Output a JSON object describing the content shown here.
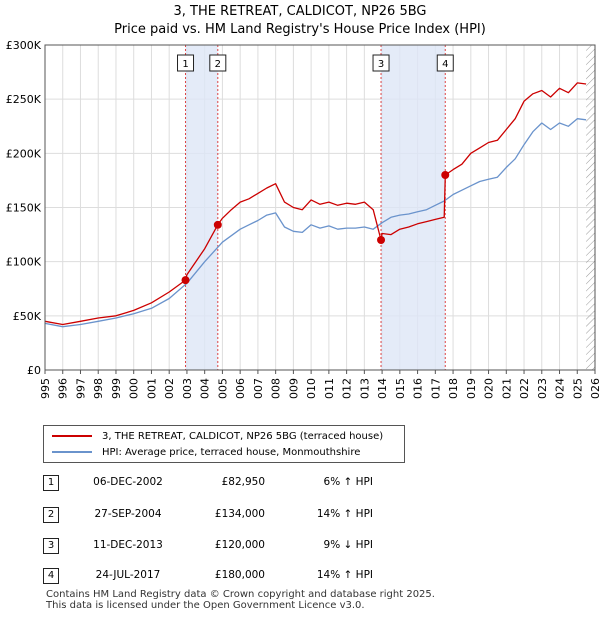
{
  "chart_data": {
    "type": "line",
    "title": "3, THE RETREAT, CALDICOT, NP26 5BG",
    "subtitle": "Price paid vs. HM Land Registry's House Price Index (HPI)",
    "xlim": [
      1995,
      2026
    ],
    "ylim": [
      0,
      300000
    ],
    "x_ticks": [
      "1995",
      "1996",
      "1997",
      "1998",
      "1999",
      "2000",
      "2001",
      "2002",
      "2003",
      "2004",
      "2005",
      "2006",
      "2007",
      "2008",
      "2009",
      "2010",
      "2011",
      "2012",
      "2013",
      "2014",
      "2015",
      "2016",
      "2017",
      "2018",
      "2019",
      "2020",
      "2021",
      "2022",
      "2023",
      "2024",
      "2025",
      "2026"
    ],
    "y_ticks": [
      {
        "value": 0,
        "label": "£0"
      },
      {
        "value": 50000,
        "label": "£50K"
      },
      {
        "value": 100000,
        "label": "£100K"
      },
      {
        "value": 150000,
        "label": "£150K"
      },
      {
        "value": 200000,
        "label": "£200K"
      },
      {
        "value": 250000,
        "label": "£250K"
      },
      {
        "value": 300000,
        "label": "£300K"
      }
    ],
    "grid": true,
    "future_hatch_from": 2025.5,
    "shaded_periods": [
      [
        2002.92,
        2004.74
      ],
      [
        2013.94,
        2017.56
      ]
    ],
    "series": [
      {
        "name": "3, THE RETREAT, CALDICOT, NP26 5BG (terraced house)",
        "color": "#cc0000",
        "x": [
          1995,
          1996,
          1997,
          1998,
          1999,
          2000,
          2001,
          2002,
          2002.92,
          2003,
          2003.5,
          2004,
          2004.74,
          2005,
          2005.5,
          2006,
          2006.5,
          2007,
          2007.5,
          2008,
          2008.5,
          2009,
          2009.5,
          2010,
          2010.5,
          2011,
          2011.5,
          2012,
          2012.5,
          2013,
          2013.5,
          2013.94,
          2014,
          2014.5,
          2015,
          2015.5,
          2016,
          2016.5,
          2017,
          2017.5,
          2017.56,
          2018,
          2018.5,
          2019,
          2019.5,
          2020,
          2020.5,
          2021,
          2021.5,
          2022,
          2022.5,
          2023,
          2023.5,
          2024,
          2024.5,
          2025,
          2025.5
        ],
        "y": [
          45000,
          42000,
          45000,
          48000,
          50000,
          55000,
          62000,
          72000,
          82950,
          88000,
          100000,
          112000,
          134000,
          140000,
          148000,
          155000,
          158000,
          163000,
          168000,
          172000,
          155000,
          150000,
          148000,
          157000,
          153000,
          155000,
          152000,
          154000,
          153000,
          155000,
          148000,
          120000,
          126000,
          125000,
          130000,
          132000,
          135000,
          137000,
          139000,
          141000,
          180000,
          185000,
          190000,
          200000,
          205000,
          210000,
          212000,
          222000,
          232000,
          248000,
          255000,
          258000,
          252000,
          260000,
          256000,
          265000,
          264000
        ]
      },
      {
        "name": "HPI: Average price, terraced house, Monmouthshire",
        "color": "#6a93cc",
        "x": [
          1995,
          1996,
          1997,
          1998,
          1999,
          2000,
          2001,
          2002,
          2003,
          2004,
          2005,
          2006,
          2006.5,
          2007,
          2007.5,
          2008,
          2008.5,
          2009,
          2009.5,
          2010,
          2010.5,
          2011,
          2011.5,
          2012,
          2012.5,
          2013,
          2013.5,
          2014,
          2014.5,
          2015,
          2015.5,
          2016,
          2016.5,
          2017,
          2017.5,
          2018,
          2018.5,
          2019,
          2019.5,
          2020,
          2020.5,
          2021,
          2021.5,
          2022,
          2022.5,
          2023,
          2023.5,
          2024,
          2024.5,
          2025,
          2025.5
        ],
        "y": [
          43000,
          40000,
          42000,
          45000,
          48000,
          52000,
          57000,
          66000,
          80000,
          100000,
          118000,
          130000,
          134000,
          138000,
          143000,
          145000,
          132000,
          128000,
          127000,
          134000,
          131000,
          133000,
          130000,
          131000,
          131000,
          132000,
          130000,
          136000,
          141000,
          143000,
          144000,
          146000,
          148000,
          152000,
          156000,
          162000,
          166000,
          170000,
          174000,
          176000,
          178000,
          187000,
          195000,
          208000,
          220000,
          228000,
          222000,
          228000,
          225000,
          232000,
          231000
        ]
      }
    ],
    "sales": [
      {
        "label": "1",
        "x": 2002.92,
        "y": 82950
      },
      {
        "label": "2",
        "x": 2004.74,
        "y": 134000
      },
      {
        "label": "3",
        "x": 2013.94,
        "y": 120000
      },
      {
        "label": "4",
        "x": 2017.56,
        "y": 180000
      }
    ]
  },
  "legend": {
    "red_label": "3, THE RETREAT, CALDICOT, NP26 5BG (terraced house)",
    "blue_label": "HPI: Average price, terraced house, Monmouthshire"
  },
  "transactions": [
    {
      "num": "1",
      "date": "06-DEC-2002",
      "price": "£82,950",
      "hpi": "6% ↑ HPI"
    },
    {
      "num": "2",
      "date": "27-SEP-2004",
      "price": "£134,000",
      "hpi": "14% ↑ HPI"
    },
    {
      "num": "3",
      "date": "11-DEC-2013",
      "price": "£120,000",
      "hpi": "9% ↓ HPI"
    },
    {
      "num": "4",
      "date": "24-JUL-2017",
      "price": "£180,000",
      "hpi": "14% ↑ HPI"
    }
  ],
  "footer": {
    "line1": "Contains HM Land Registry data © Crown copyright and database right 2025.",
    "line2": "This data is licensed under the Open Government Licence v3.0."
  }
}
